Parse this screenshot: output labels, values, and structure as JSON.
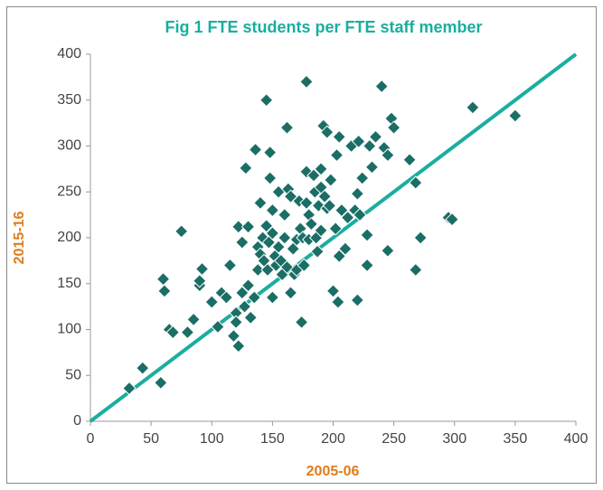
{
  "chart_data": {
    "type": "scatter",
    "title": "Fig 1 FTE students per FTE staff member",
    "x_label": "2005-06",
    "y_label": "2015-16",
    "xlim": [
      0,
      400
    ],
    "xticks": [
      0,
      50,
      100,
      150,
      200,
      250,
      300,
      350,
      400
    ],
    "ylim": [
      0,
      400
    ],
    "yticks": [
      0,
      50,
      100,
      150,
      200,
      250,
      300,
      350,
      400
    ],
    "grid": false,
    "color": "#1b6e66",
    "reference_line": {
      "x": [
        0,
        400
      ],
      "y": [
        0,
        400
      ],
      "color": "#1aaea0"
    },
    "x": [
      32,
      43,
      58,
      60,
      61,
      65,
      68,
      75,
      80,
      85,
      90,
      92,
      90,
      100,
      105,
      108,
      112,
      115,
      118,
      120,
      120,
      122,
      122,
      125,
      125,
      127,
      128,
      130,
      130,
      132,
      135,
      136,
      138,
      138,
      140,
      140,
      142,
      143,
      145,
      145,
      146,
      147,
      148,
      148,
      150,
      150,
      150,
      152,
      153,
      155,
      155,
      157,
      158,
      160,
      160,
      162,
      162,
      163,
      165,
      165,
      167,
      168,
      170,
      170,
      172,
      173,
      174,
      175,
      176,
      178,
      178,
      178,
      180,
      180,
      182,
      184,
      185,
      186,
      187,
      188,
      190,
      190,
      190,
      192,
      193,
      195,
      195,
      197,
      198,
      200,
      202,
      203,
      204,
      205,
      205,
      207,
      210,
      212,
      215,
      218,
      220,
      220,
      221,
      222,
      224,
      228,
      228,
      230,
      232,
      235,
      240,
      242,
      245,
      245,
      248,
      250,
      263,
      268,
      268,
      272,
      295,
      298,
      315,
      350
    ],
    "values": [
      36,
      58,
      42,
      155,
      142,
      100,
      97,
      207,
      97,
      111,
      148,
      166,
      153,
      130,
      103,
      140,
      135,
      170,
      93,
      118,
      108,
      82,
      212,
      140,
      195,
      125,
      276,
      148,
      212,
      113,
      135,
      296,
      165,
      190,
      182,
      238,
      200,
      175,
      350,
      213,
      165,
      195,
      293,
      265,
      230,
      135,
      205,
      180,
      170,
      250,
      190,
      175,
      160,
      225,
      200,
      320,
      168,
      253,
      140,
      245,
      188,
      160,
      198,
      165,
      240,
      210,
      108,
      200,
      170,
      370,
      272,
      238,
      225,
      198,
      215,
      268,
      250,
      200,
      185,
      235,
      208,
      275,
      255,
      322,
      245,
      232,
      315,
      235,
      263,
      142,
      210,
      290,
      130,
      310,
      180,
      230,
      188,
      222,
      300,
      230,
      132,
      248,
      305,
      225,
      265,
      170,
      203,
      300,
      277,
      310,
      365,
      298,
      290,
      186,
      330,
      320,
      285,
      165,
      260,
      200,
      222,
      220,
      342,
      333
    ]
  }
}
